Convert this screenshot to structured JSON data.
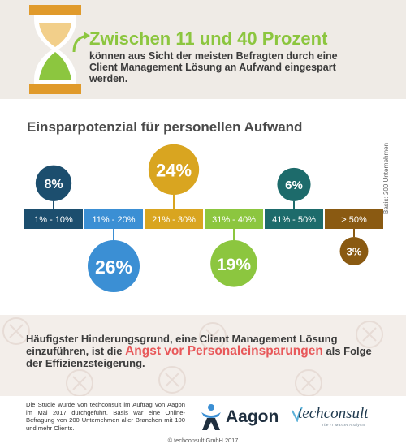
{
  "highlight": {
    "headline": "Zwischen 11 und 40 Prozent",
    "text": "können aus Sicht der meisten Befragten durch eine Client Management Lösung an Aufwand eingespart werden."
  },
  "chart_data": {
    "type": "bar",
    "title": "Einsparpotenzial für personellen Aufwand",
    "note": "Basis: 200 Unternehmen",
    "categories": [
      "1% - 10%",
      "11% - 20%",
      "21% - 30%",
      "31% - 40%",
      "41% - 50%",
      "> 50%"
    ],
    "values": [
      8,
      26,
      24,
      19,
      6,
      3
    ],
    "value_labels": [
      "8%",
      "26%",
      "24%",
      "19%",
      "6%",
      "3%"
    ],
    "bubble_side": [
      "top",
      "bottom",
      "top",
      "bottom",
      "top",
      "bottom"
    ],
    "colors": [
      "#1c4e6e",
      "#3b8fd4",
      "#d9a520",
      "#8cc63f",
      "#1d6b6b",
      "#8a5a12"
    ],
    "unit": "%"
  },
  "obstacle": {
    "before": "Häufigster Hinderungsgrund, eine Client Management Lösung einzuführen, ist die ",
    "highlight": "Angst vor Personaleinsparungen",
    "after": " als Folge der Effizienzsteigerung."
  },
  "footer": {
    "study_text": "Die Studie wurde von techconsult im Auftrag von Aagon im Mai 2017 durchgeführt. Basis war eine Online-Befragung von 200 Unternehmen aller Branchen mit 100 und mehr Clients.",
    "aagon": "Aagon",
    "techconsult": "techconsult",
    "techconsult_tagline": "The IT Market Analysts",
    "copyright": "© techconsult GmbH 2017"
  },
  "colors": {
    "accent_green": "#8cc63f",
    "accent_red": "#e8585a",
    "band": "#efebe6"
  }
}
